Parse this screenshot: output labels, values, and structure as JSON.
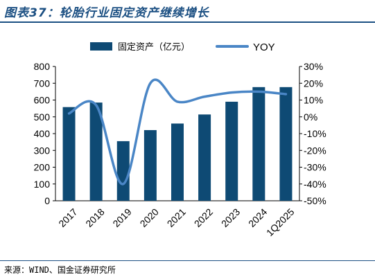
{
  "header": {
    "title": "图表37：轮胎行业固定资产继续增长"
  },
  "footer": {
    "source": "来源：WIND、国金证券研究所"
  },
  "colors": {
    "bar": "#0e4a74",
    "line": "#4a86c6",
    "rule": "#1b4f82"
  },
  "chart_data": {
    "type": "bar",
    "categories": [
      "2017",
      "2018",
      "2019",
      "2020",
      "2021",
      "2022",
      "2023",
      "2024",
      "1Q2025"
    ],
    "series": [
      {
        "name": "固定资产（亿元）",
        "type": "bar",
        "axis": "left",
        "values": [
          558,
          585,
          355,
          421,
          460,
          514,
          590,
          677,
          677
        ]
      },
      {
        "name": "YOY",
        "type": "line",
        "axis": "right",
        "smooth": true,
        "unit": "%",
        "values": [
          2,
          7,
          -40,
          20,
          9,
          12,
          14.5,
          15,
          13.5
        ]
      }
    ],
    "ylim_left": [
      0,
      800
    ],
    "yticks_left": [
      "800",
      "700",
      "600",
      "500",
      "400",
      "300",
      "200",
      "100",
      "0"
    ],
    "ylim_right": [
      -50,
      30
    ],
    "yticks_right": [
      "30%",
      "20%",
      "10%",
      "0%",
      "-10%",
      "-20%",
      "-30%",
      "-40%",
      "-50%"
    ],
    "legend_position": "top",
    "grid": false
  }
}
